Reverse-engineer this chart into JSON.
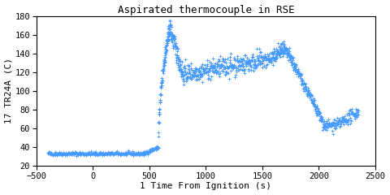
{
  "title": "Aspirated thermocouple in RSE",
  "xlabel": "1 Time From Ignition (s)",
  "ylabel": "17 TR24A (C)",
  "xlim": [
    -500,
    2500
  ],
  "ylim": [
    20,
    180
  ],
  "xticks": [
    -500,
    0,
    500,
    1000,
    1500,
    2000,
    2500
  ],
  "yticks": [
    20,
    40,
    60,
    80,
    100,
    120,
    140,
    160,
    180
  ],
  "line_color": "#4499ff",
  "marker": "+",
  "markersize": 2.5,
  "linewidth": 0,
  "markeredgewidth": 0.6,
  "background_color": "#ffffff",
  "title_fontsize": 9,
  "label_fontsize": 8,
  "tick_fontsize": 7.5
}
